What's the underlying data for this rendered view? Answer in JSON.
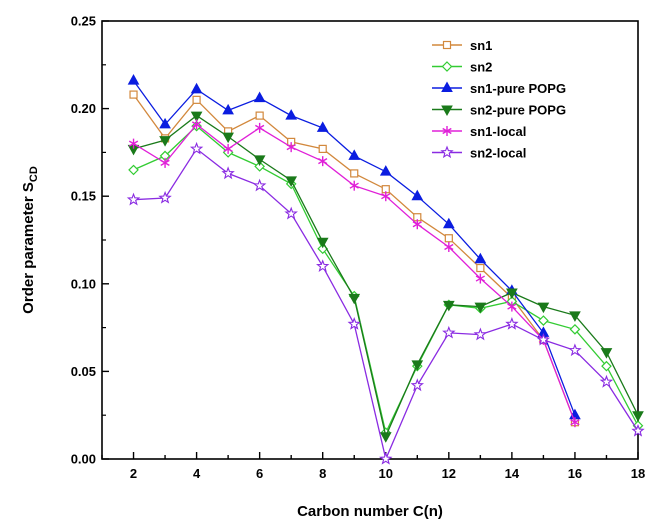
{
  "chart_data": {
    "type": "line",
    "xlabel": "Carbon number C(n)",
    "ylabel": "Order parameter S",
    "ylabel_sub": "CD",
    "xlim": [
      1,
      18
    ],
    "ylim": [
      0,
      0.25
    ],
    "xticks": [
      2,
      4,
      6,
      8,
      10,
      12,
      14,
      16,
      18
    ],
    "yticks": [
      "0.00",
      "0.05",
      "0.10",
      "0.15",
      "0.20",
      "0.25"
    ],
    "ytick_values": [
      0,
      0.05,
      0.1,
      0.15,
      0.2,
      0.25
    ],
    "legend_position": "top-right",
    "grid": false,
    "series": [
      {
        "name": "sn1",
        "color": "#d2883c",
        "marker": "square-open",
        "x": [
          2,
          3,
          4,
          5,
          6,
          7,
          8,
          9,
          10,
          11,
          12,
          13,
          14,
          15,
          16
        ],
        "y": [
          0.208,
          0.183,
          0.205,
          0.187,
          0.196,
          0.181,
          0.177,
          0.163,
          0.154,
          0.138,
          0.126,
          0.109,
          0.092,
          0.068,
          0.021
        ]
      },
      {
        "name": "sn2",
        "color": "#33cc33",
        "marker": "diamond-open",
        "x": [
          2,
          3,
          4,
          5,
          6,
          7,
          8,
          9,
          10,
          11,
          12,
          13,
          14,
          15,
          16,
          17,
          18
        ],
        "y": [
          0.165,
          0.173,
          0.19,
          0.175,
          0.167,
          0.157,
          0.12,
          0.093,
          0.015,
          0.053,
          0.088,
          0.086,
          0.09,
          0.079,
          0.074,
          0.053,
          0.019
        ]
      },
      {
        "name": "sn1-pure POPG",
        "color": "#0b1de0",
        "marker": "triangle-up",
        "x": [
          2,
          3,
          4,
          5,
          6,
          7,
          8,
          9,
          10,
          11,
          12,
          13,
          14,
          15,
          16
        ],
        "y": [
          0.216,
          0.191,
          0.211,
          0.199,
          0.206,
          0.196,
          0.189,
          0.173,
          0.164,
          0.15,
          0.134,
          0.114,
          0.096,
          0.072,
          0.025
        ]
      },
      {
        "name": "sn2-pure POPG",
        "color": "#1a7a1a",
        "marker": "triangle-down",
        "x": [
          2,
          3,
          4,
          5,
          6,
          7,
          8,
          9,
          10,
          11,
          12,
          13,
          14,
          15,
          16,
          17,
          18
        ],
        "y": [
          0.177,
          0.182,
          0.196,
          0.184,
          0.171,
          0.159,
          0.124,
          0.092,
          0.013,
          0.054,
          0.088,
          0.087,
          0.095,
          0.087,
          0.082,
          0.061,
          0.025
        ]
      },
      {
        "name": "sn1-local",
        "color": "#e020d8",
        "marker": "asterisk",
        "x": [
          2,
          3,
          4,
          5,
          6,
          7,
          8,
          9,
          10,
          11,
          12,
          13,
          14,
          15,
          16
        ],
        "y": [
          0.18,
          0.169,
          0.191,
          0.177,
          0.189,
          0.178,
          0.17,
          0.156,
          0.15,
          0.134,
          0.121,
          0.103,
          0.087,
          0.068,
          0.021
        ]
      },
      {
        "name": "sn2-local",
        "color": "#8a2be2",
        "marker": "star-open",
        "x": [
          2,
          3,
          4,
          5,
          6,
          7,
          8,
          9,
          10,
          11,
          12,
          13,
          14,
          15,
          16,
          17,
          18
        ],
        "y": [
          0.148,
          0.149,
          0.177,
          0.163,
          0.156,
          0.14,
          0.11,
          0.077,
          0.0,
          0.042,
          0.072,
          0.071,
          0.077,
          0.068,
          0.062,
          0.044,
          0.016
        ]
      }
    ]
  }
}
